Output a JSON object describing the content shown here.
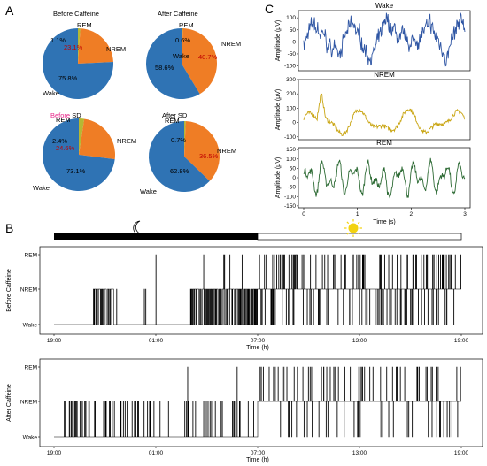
{
  "panels": {
    "a": "A",
    "b": "B",
    "c": "C"
  },
  "colors": {
    "wake": "#2f73b4",
    "nrem": "#ef7d25",
    "rem": "#b4b834",
    "wake_trace": "#2f56a4",
    "nrem_trace": "#c9a512",
    "rem_trace": "#2e6b35",
    "hypno": "#000000",
    "highlight": "#e8278a"
  },
  "chart_data": [
    {
      "type": "pie",
      "title_prefix": "",
      "title": "Before Caffeine",
      "labels": [
        "REM",
        "NREM",
        "Wake"
      ],
      "values": [
        1.1,
        23.1,
        75.8
      ],
      "value_labels": [
        "1.1%",
        "23.1%",
        "75.8%"
      ]
    },
    {
      "type": "pie",
      "title_prefix": "",
      "title": "After Caffeine",
      "labels": [
        "REM",
        "NREM",
        "Wake"
      ],
      "values": [
        0.6,
        40.7,
        58.6
      ],
      "value_labels": [
        "0.6%",
        "40.7%",
        "58.6%"
      ]
    },
    {
      "type": "pie",
      "title_prefix": "Before",
      "title": "SD",
      "labels": [
        "REM",
        "NREM",
        "Wake"
      ],
      "values": [
        2.4,
        24.6,
        73.1
      ],
      "value_labels": [
        "2.4%",
        "24.6%",
        "73.1%"
      ]
    },
    {
      "type": "pie",
      "title_prefix": "",
      "title": "After SD",
      "labels": [
        "REM",
        "NREM",
        "Wake"
      ],
      "values": [
        0.7,
        36.5,
        62.8
      ],
      "value_labels": [
        "0.7%",
        "36.5%",
        "62.8%"
      ]
    },
    {
      "type": "line",
      "title": "Wake",
      "ylabel": "Amplitude (μV)",
      "ylim": [
        -120,
        130
      ],
      "yticks": [
        -100,
        -50,
        0,
        50,
        100
      ],
      "xlim": [
        0,
        3
      ],
      "duration_s": 3,
      "amplitude": 60
    },
    {
      "type": "line",
      "title": "NREM",
      "ylabel": "Amplitude (μV)",
      "ylim": [
        -120,
        300
      ],
      "yticks": [
        -100,
        0,
        100,
        200,
        300
      ],
      "xlim": [
        0,
        3
      ],
      "duration_s": 3,
      "amplitude": 50
    },
    {
      "type": "line",
      "title": "REM",
      "ylabel": "Amplitude (μV)",
      "ylim": [
        -160,
        160
      ],
      "yticks": [
        -150,
        -100,
        -50,
        0,
        50,
        100,
        150
      ],
      "xlim": [
        0,
        3
      ],
      "xticks": [
        0,
        1,
        2,
        3
      ],
      "xlabel": "Time (s)",
      "duration_s": 3,
      "amplitude": 55
    },
    {
      "type": "line",
      "title": "",
      "ylabel": "Before Caffeine",
      "xlabel": "Time (h)",
      "stages": [
        "Wake",
        "NREM",
        "REM"
      ],
      "tick_labels": [
        "REM",
        "NREM",
        "Wake"
      ],
      "xtick_labels": [
        "19:00",
        "01:00",
        "07:00",
        "13:00",
        "19:00"
      ],
      "hours": 24,
      "dark_hours": 12
    },
    {
      "type": "line",
      "title": "",
      "ylabel": "After Caffeine",
      "xlabel": "Time (h)",
      "stages": [
        "Wake",
        "NREM",
        "REM"
      ],
      "tick_labels": [
        "REM",
        "NREM",
        "Wake"
      ],
      "xtick_labels": [
        "19:00",
        "01:00",
        "07:00",
        "13:00",
        "19:00"
      ],
      "hours": 24,
      "dark_hours": 12
    }
  ]
}
